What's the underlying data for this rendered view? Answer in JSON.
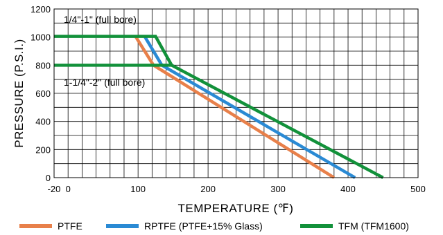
{
  "chart_data": {
    "type": "line",
    "title": "",
    "xlabel": "TEMPERATURE (℉)",
    "ylabel": "PRESSURE (P.S.I.)",
    "xlim": [
      -20,
      500
    ],
    "ylim": [
      0,
      1200
    ],
    "x_ticks": [
      -20,
      0,
      100,
      200,
      300,
      400,
      500
    ],
    "y_ticks": [
      0,
      200,
      400,
      600,
      800,
      1000,
      1200
    ],
    "grid": true,
    "legend_position": "bottom",
    "annotations": [
      {
        "text": "1/4\"-1\" (full bore)"
      },
      {
        "text": "1-1/4\"-2\" (full bore)"
      }
    ],
    "series": [
      {
        "name": "PTFE",
        "color": "#e8804a",
        "points": [
          [
            97,
            1000
          ],
          [
            122,
            800
          ],
          [
            380,
            0
          ]
        ]
      },
      {
        "name": "RPTFE (PTFE+15% Glass)",
        "color": "#2a8ad4",
        "points": [
          [
            110,
            1000
          ],
          [
            134,
            800
          ],
          [
            410,
            0
          ]
        ]
      },
      {
        "name": "TFM (TFM1600)",
        "color": "#12913a",
        "points": [
          [
            -20,
            1005
          ],
          [
            125,
            1005
          ],
          [
            148,
            800
          ],
          [
            450,
            0
          ]
        ],
        "points_lower": [
          [
            -20,
            800
          ],
          [
            148,
            800
          ]
        ]
      }
    ]
  }
}
